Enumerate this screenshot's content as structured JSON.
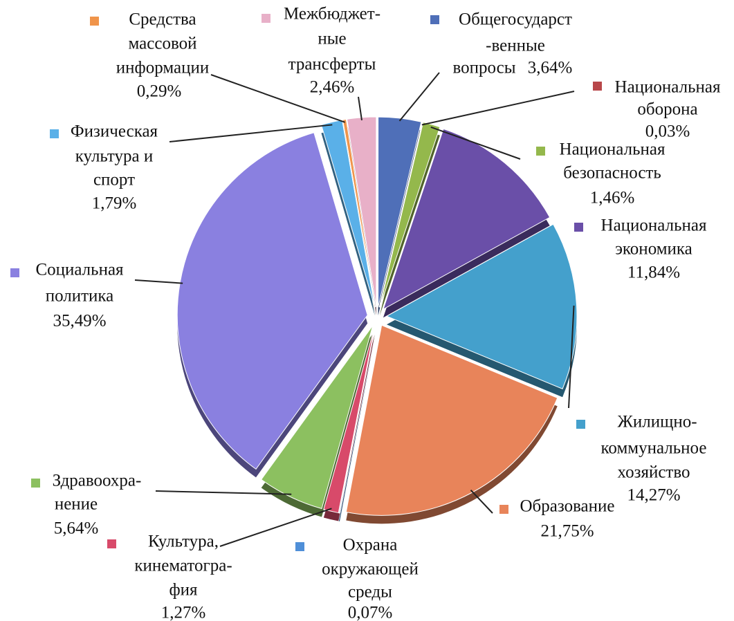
{
  "chart_data": {
    "type": "pie",
    "categories": [
      [
        "Общегосударст",
        "-венные",
        "вопросы"
      ],
      [
        "Национальная",
        "оборона"
      ],
      [
        "Национальная",
        "безопасность"
      ],
      [
        "Национальная",
        "экономика"
      ],
      [
        "Жилищно-",
        "коммунальное",
        "хозяйство"
      ],
      [
        "Образование"
      ],
      [
        "Охрана",
        "окружающей",
        "среды"
      ],
      [
        "Культура,",
        "кинематогра-",
        "фия"
      ],
      [
        "Здравоохра-",
        "нение"
      ],
      [
        "Социальная",
        "политика"
      ],
      [
        "Физическая",
        "культура и",
        "спорт"
      ],
      [
        "Средства",
        "массовой",
        "информации"
      ],
      [
        "Межбюджет-",
        "ные",
        "трансферты"
      ]
    ],
    "values": [
      3.64,
      0.03,
      1.46,
      11.84,
      14.27,
      21.75,
      0.07,
      1.27,
      5.64,
      35.49,
      1.79,
      0.29,
      2.46
    ],
    "value_labels": [
      "3,64%",
      "0,03%",
      "1,46%",
      "11,84%",
      "14,27%",
      "21,75%",
      "0,07%",
      "1,27%",
      "5,64%",
      "35,49%",
      "1,79%",
      "0,29%",
      "2,46%"
    ],
    "colors": [
      "#4f6fb8",
      "#b8474a",
      "#94b84c",
      "#6a4fa8",
      "#44a0cc",
      "#e8845a",
      "#4f8fd8",
      "#d84a6a",
      "#8cc060",
      "#8a80e0",
      "#5ab0e8",
      "#f0944a",
      "#e8b0c8"
    ]
  }
}
